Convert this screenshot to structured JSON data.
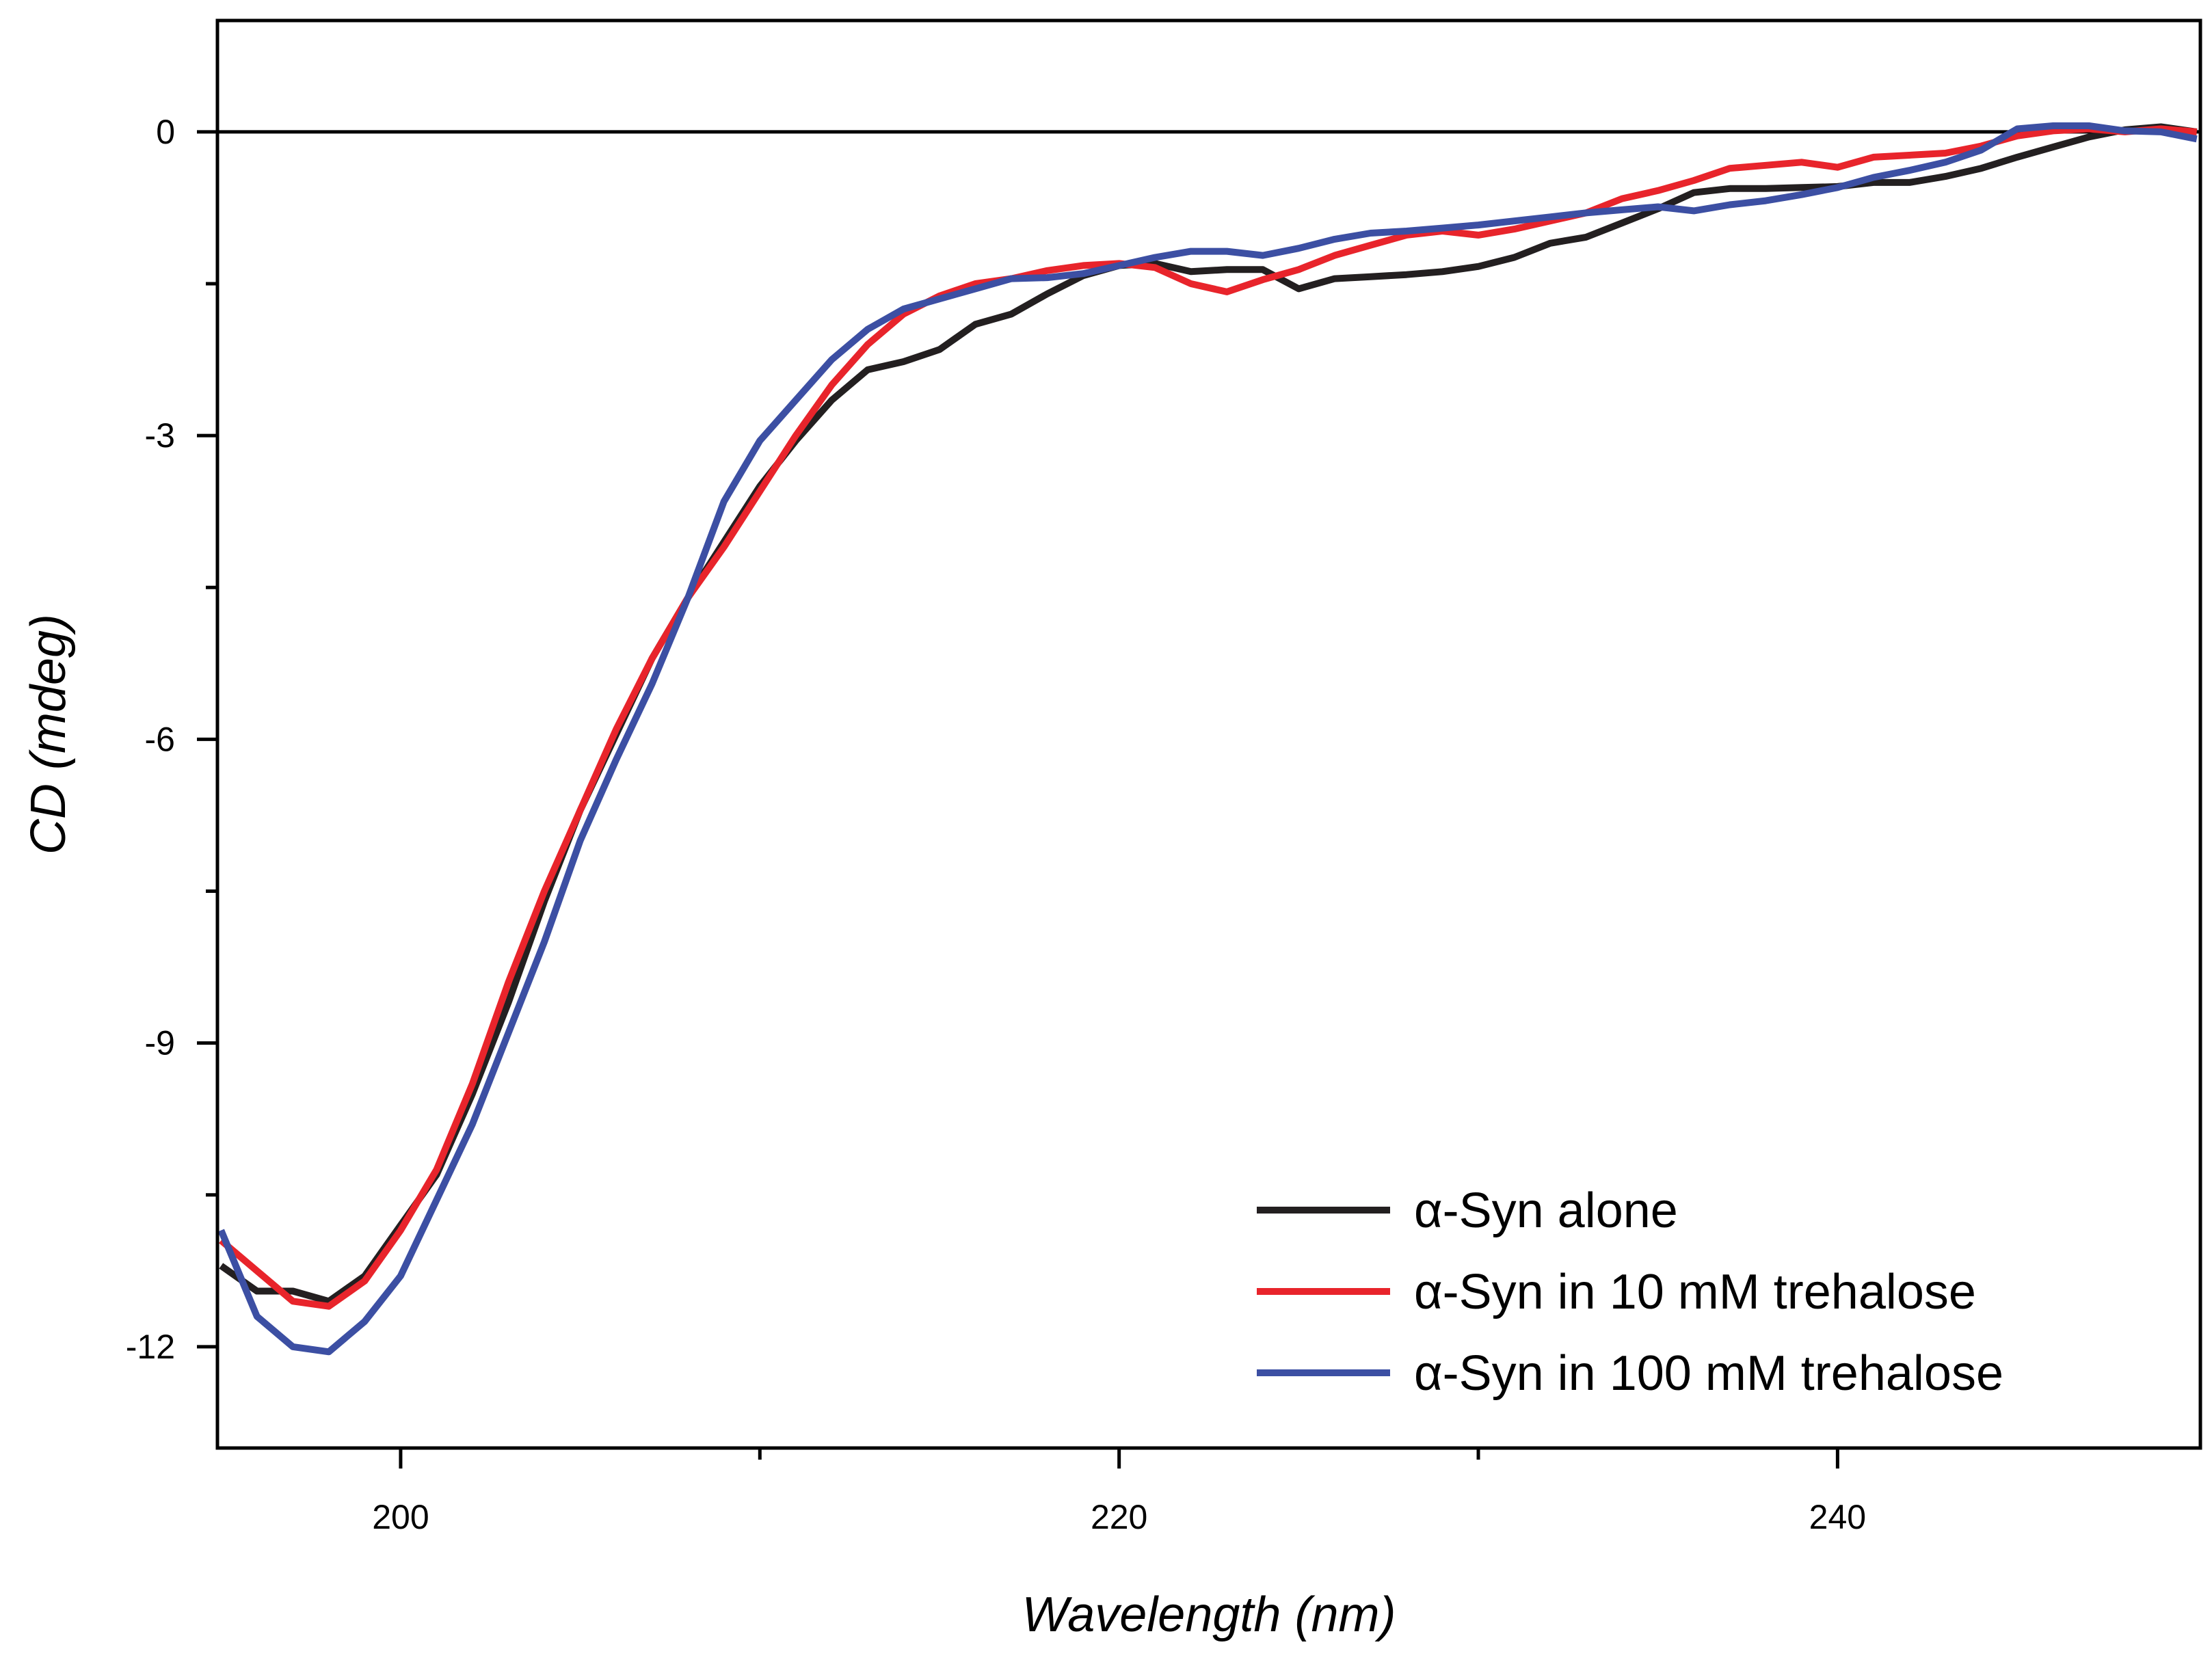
{
  "chart_data": {
    "type": "line",
    "title": "",
    "xlabel": "Wavelength (nm)",
    "ylabel": "CD (mdeg)",
    "xlim": [
      194.9,
      250.1
    ],
    "ylim": [
      -13.0,
      1.1
    ],
    "x_major_ticks": [
      200,
      220,
      240
    ],
    "x_minor_ticks": [
      210,
      230
    ],
    "x_tick_labels": [
      "200",
      "220",
      "240"
    ],
    "y_major_ticks": [
      0,
      -3,
      -6,
      -9,
      -12
    ],
    "y_minor_ticks": [
      -1.5,
      -4.5,
      -7.5,
      -10.5
    ],
    "y_tick_labels": [
      "0",
      "-3",
      "-6",
      "-9",
      "-12"
    ],
    "zero_line": 0,
    "grid": false,
    "legend_position": "bottom-right",
    "x": [
      195,
      196,
      197,
      198,
      199,
      200,
      201,
      202,
      203,
      204,
      205,
      206,
      207,
      208,
      209,
      210,
      211,
      212,
      213,
      214,
      215,
      216,
      217,
      218,
      219,
      220,
      221,
      222,
      223,
      224,
      225,
      226,
      227,
      228,
      229,
      230,
      231,
      232,
      233,
      234,
      235,
      236,
      237,
      238,
      239,
      240,
      241,
      242,
      243,
      244,
      245,
      246,
      247,
      248,
      249,
      250
    ],
    "series": [
      {
        "name": "α-Syn alone",
        "color": "#231f20",
        "values": [
          -11.2,
          -11.45,
          -11.45,
          -11.55,
          -11.3,
          -10.8,
          -10.3,
          -9.5,
          -8.6,
          -7.6,
          -6.7,
          -5.95,
          -5.2,
          -4.6,
          -4.05,
          -3.5,
          -3.05,
          -2.65,
          -2.35,
          -2.27,
          -2.15,
          -1.9,
          -1.8,
          -1.6,
          -1.42,
          -1.32,
          -1.3,
          -1.38,
          -1.36,
          -1.36,
          -1.55,
          -1.45,
          -1.43,
          -1.41,
          -1.38,
          -1.33,
          -1.24,
          -1.1,
          -1.04,
          -0.9,
          -0.76,
          -0.6,
          -0.56,
          -0.56,
          -0.55,
          -0.54,
          -0.5,
          -0.5,
          -0.44,
          -0.36,
          -0.25,
          -0.15,
          -0.05,
          0.02,
          0.05,
          0.0
        ]
      },
      {
        "name": "α-Syn in 10 mM trehalose",
        "color": "#e8242b",
        "values": [
          -10.95,
          -11.25,
          -11.55,
          -11.6,
          -11.35,
          -10.85,
          -10.25,
          -9.4,
          -8.4,
          -7.5,
          -6.7,
          -5.9,
          -5.2,
          -4.6,
          -4.1,
          -3.55,
          -3.0,
          -2.5,
          -2.1,
          -1.8,
          -1.62,
          -1.5,
          -1.45,
          -1.37,
          -1.32,
          -1.3,
          -1.34,
          -1.5,
          -1.58,
          -1.46,
          -1.36,
          -1.22,
          -1.12,
          -1.02,
          -0.98,
          -1.02,
          -0.96,
          -0.88,
          -0.8,
          -0.66,
          -0.58,
          -0.48,
          -0.36,
          -0.33,
          -0.3,
          -0.35,
          -0.25,
          -0.23,
          -0.21,
          -0.14,
          -0.04,
          0.01,
          0.03,
          0.0,
          0.03,
          0.0
        ]
      },
      {
        "name": "α-Syn in 100 mM trehalose",
        "color": "#3c4fa3",
        "values": [
          -10.85,
          -11.7,
          -12.0,
          -12.05,
          -11.75,
          -11.3,
          -10.55,
          -9.8,
          -8.9,
          -8.0,
          -7.0,
          -6.2,
          -5.45,
          -4.6,
          -3.65,
          -3.05,
          -2.65,
          -2.25,
          -1.95,
          -1.75,
          -1.65,
          -1.55,
          -1.45,
          -1.44,
          -1.4,
          -1.32,
          -1.24,
          -1.18,
          -1.18,
          -1.22,
          -1.15,
          -1.06,
          -1.0,
          -0.98,
          -0.95,
          -0.92,
          -0.88,
          -0.84,
          -0.8,
          -0.77,
          -0.74,
          -0.78,
          -0.72,
          -0.68,
          -0.62,
          -0.55,
          -0.45,
          -0.38,
          -0.3,
          -0.18,
          0.03,
          0.06,
          0.06,
          0.01,
          0.0,
          -0.07
        ]
      }
    ]
  }
}
